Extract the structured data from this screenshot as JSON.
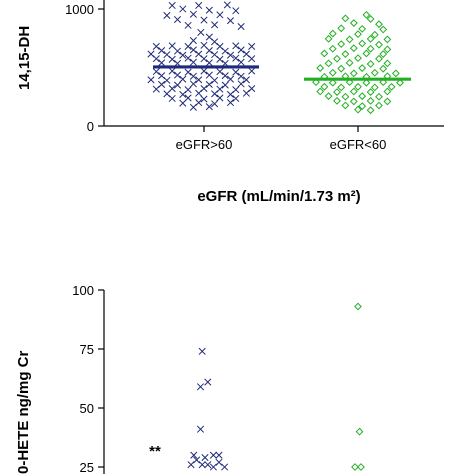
{
  "colors": {
    "group1": "#1f2a7a",
    "group2": "#22b022",
    "axis": "#000000"
  },
  "chart_data": [
    {
      "type": "scatter",
      "subtype": "dot-plot",
      "ylabel": "14,15-DH",
      "ylim": [
        0,
        1100
      ],
      "yticks": [
        "0",
        "1000"
      ],
      "categories": [
        "eGFR>60",
        "eGFR<60"
      ],
      "xlabel": "eGFR (mL/min/1.73 m²)",
      "grid": false,
      "series": [
        {
          "category": "eGFR>60",
          "marker": "x",
          "color": "#1f2a7a",
          "median": 505,
          "points": [
            [
              0.42,
              1080
            ],
            [
              0.62,
              1090
            ],
            [
              0.2,
              1030
            ],
            [
              0.45,
              1030
            ],
            [
              0.72,
              1035
            ],
            [
              0.3,
              1000
            ],
            [
              0.55,
              990
            ],
            [
              0.8,
              985
            ],
            [
              0.15,
              945
            ],
            [
              0.4,
              955
            ],
            [
              0.65,
              950
            ],
            [
              0.25,
              910
            ],
            [
              0.5,
              905
            ],
            [
              0.75,
              900
            ],
            [
              0.35,
              860
            ],
            [
              0.6,
              865
            ],
            [
              0.85,
              850
            ],
            [
              0.47,
              800
            ],
            [
              0.55,
              760
            ],
            [
              0.4,
              730
            ],
            [
              0.6,
              720
            ],
            [
              0.05,
              680
            ],
            [
              0.2,
              685
            ],
            [
              0.35,
              680
            ],
            [
              0.5,
              690
            ],
            [
              0.65,
              680
            ],
            [
              0.8,
              685
            ],
            [
              0.95,
              680
            ],
            [
              0.1,
              645
            ],
            [
              0.25,
              640
            ],
            [
              0.4,
              650
            ],
            [
              0.55,
              645
            ],
            [
              0.7,
              640
            ],
            [
              0.85,
              650
            ],
            [
              0.0,
              615
            ],
            [
              0.15,
              610
            ],
            [
              0.3,
              605
            ],
            [
              0.45,
              615
            ],
            [
              0.6,
              610
            ],
            [
              0.75,
              605
            ],
            [
              0.9,
              615
            ],
            [
              0.05,
              575
            ],
            [
              0.2,
              570
            ],
            [
              0.35,
              580
            ],
            [
              0.5,
              575
            ],
            [
              0.65,
              570
            ],
            [
              0.8,
              580
            ],
            [
              0.95,
              575
            ],
            [
              0.1,
              540
            ],
            [
              0.25,
              535
            ],
            [
              0.4,
              545
            ],
            [
              0.55,
              540
            ],
            [
              0.7,
              535
            ],
            [
              0.85,
              545
            ],
            [
              0.05,
              465
            ],
            [
              0.2,
              470
            ],
            [
              0.35,
              460
            ],
            [
              0.5,
              470
            ],
            [
              0.65,
              465
            ],
            [
              0.8,
              460
            ],
            [
              0.95,
              470
            ],
            [
              0.1,
              430
            ],
            [
              0.25,
              435
            ],
            [
              0.4,
              425
            ],
            [
              0.55,
              435
            ],
            [
              0.7,
              430
            ],
            [
              0.85,
              425
            ],
            [
              0.0,
              395
            ],
            [
              0.15,
              390
            ],
            [
              0.3,
              400
            ],
            [
              0.45,
              395
            ],
            [
              0.6,
              390
            ],
            [
              0.75,
              400
            ],
            [
              0.9,
              395
            ],
            [
              0.1,
              355
            ],
            [
              0.25,
              350
            ],
            [
              0.4,
              360
            ],
            [
              0.55,
              355
            ],
            [
              0.7,
              350
            ],
            [
              0.85,
              360
            ],
            [
              0.05,
              315
            ],
            [
              0.2,
              320
            ],
            [
              0.35,
              310
            ],
            [
              0.5,
              320
            ],
            [
              0.65,
              315
            ],
            [
              0.8,
              310
            ],
            [
              0.95,
              320
            ],
            [
              0.15,
              275
            ],
            [
              0.3,
              270
            ],
            [
              0.45,
              280
            ],
            [
              0.6,
              275
            ],
            [
              0.75,
              270
            ],
            [
              0.9,
              280
            ],
            [
              0.2,
              235
            ],
            [
              0.35,
              240
            ],
            [
              0.5,
              230
            ],
            [
              0.65,
              240
            ],
            [
              0.8,
              235
            ],
            [
              0.3,
              195
            ],
            [
              0.45,
              200
            ],
            [
              0.6,
              190
            ],
            [
              0.75,
              200
            ],
            [
              0.4,
              160
            ],
            [
              0.55,
              165
            ]
          ]
        },
        {
          "category": "eGFR<60",
          "marker": "diamond",
          "color": "#22b022",
          "median": 400,
          "points": [
            [
              0.6,
              950
            ],
            [
              0.35,
              920
            ],
            [
              0.65,
              915
            ],
            [
              0.45,
              880
            ],
            [
              0.75,
              870
            ],
            [
              0.3,
              835
            ],
            [
              0.55,
              830
            ],
            [
              0.8,
              825
            ],
            [
              0.2,
              790
            ],
            [
              0.5,
              785
            ],
            [
              0.7,
              780
            ],
            [
              0.15,
              745
            ],
            [
              0.4,
              740
            ],
            [
              0.65,
              745
            ],
            [
              0.85,
              740
            ],
            [
              0.3,
              700
            ],
            [
              0.55,
              705
            ],
            [
              0.75,
              695
            ],
            [
              0.2,
              660
            ],
            [
              0.45,
              665
            ],
            [
              0.65,
              660
            ],
            [
              0.85,
              655
            ],
            [
              0.1,
              620
            ],
            [
              0.35,
              615
            ],
            [
              0.6,
              620
            ],
            [
              0.8,
              615
            ],
            [
              0.25,
              575
            ],
            [
              0.5,
              580
            ],
            [
              0.75,
              575
            ],
            [
              0.15,
              535
            ],
            [
              0.4,
              540
            ],
            [
              0.65,
              530
            ],
            [
              0.85,
              535
            ],
            [
              0.05,
              495
            ],
            [
              0.3,
              490
            ],
            [
              0.55,
              495
            ],
            [
              0.8,
              490
            ],
            [
              0.2,
              455
            ],
            [
              0.45,
              450
            ],
            [
              0.7,
              455
            ],
            [
              0.95,
              450
            ],
            [
              0.1,
              420
            ],
            [
              0.35,
              425
            ],
            [
              0.6,
              420
            ],
            [
              0.85,
              425
            ],
            [
              0.0,
              375
            ],
            [
              0.2,
              370
            ],
            [
              0.4,
              375
            ],
            [
              0.6,
              370
            ],
            [
              0.8,
              375
            ],
            [
              1.0,
              370
            ],
            [
              0.1,
              335
            ],
            [
              0.3,
              330
            ],
            [
              0.5,
              335
            ],
            [
              0.7,
              330
            ],
            [
              0.9,
              335
            ],
            [
              0.05,
              295
            ],
            [
              0.25,
              290
            ],
            [
              0.45,
              295
            ],
            [
              0.65,
              290
            ],
            [
              0.85,
              295
            ],
            [
              0.15,
              255
            ],
            [
              0.35,
              250
            ],
            [
              0.55,
              255
            ],
            [
              0.75,
              250
            ],
            [
              0.25,
              215
            ],
            [
              0.45,
              210
            ],
            [
              0.65,
              215
            ],
            [
              0.85,
              210
            ],
            [
              0.35,
              175
            ],
            [
              0.55,
              170
            ],
            [
              0.75,
              175
            ],
            [
              0.5,
              140
            ],
            [
              0.65,
              135
            ]
          ]
        }
      ]
    },
    {
      "type": "scatter",
      "subtype": "dot-plot",
      "ylabel": "0-HETE ng/mg Cr",
      "ylim": [
        25,
        100
      ],
      "yticks": [
        "100",
        "75",
        "50",
        "25"
      ],
      "annotations": [
        "**"
      ],
      "grid": false,
      "series": [
        {
          "marker": "x",
          "color": "#1f2a7a",
          "points": [
            [
              0.45,
              74
            ],
            [
              0.42,
              59
            ],
            [
              0.55,
              61
            ],
            [
              0.42,
              41
            ],
            [
              0.3,
              30
            ],
            [
              0.5,
              29
            ],
            [
              0.65,
              30
            ],
            [
              0.75,
              30
            ],
            [
              0.35,
              28
            ],
            [
              0.45,
              26
            ],
            [
              0.55,
              26
            ],
            [
              0.65,
              25
            ],
            [
              0.25,
              26
            ],
            [
              0.75,
              27
            ],
            [
              0.85,
              25
            ]
          ]
        },
        {
          "marker": "diamond",
          "color": "#22b022",
          "points": [
            [
              0.5,
              93
            ],
            [
              0.55,
              40
            ],
            [
              0.4,
              25
            ],
            [
              0.6,
              25
            ]
          ]
        }
      ]
    }
  ]
}
